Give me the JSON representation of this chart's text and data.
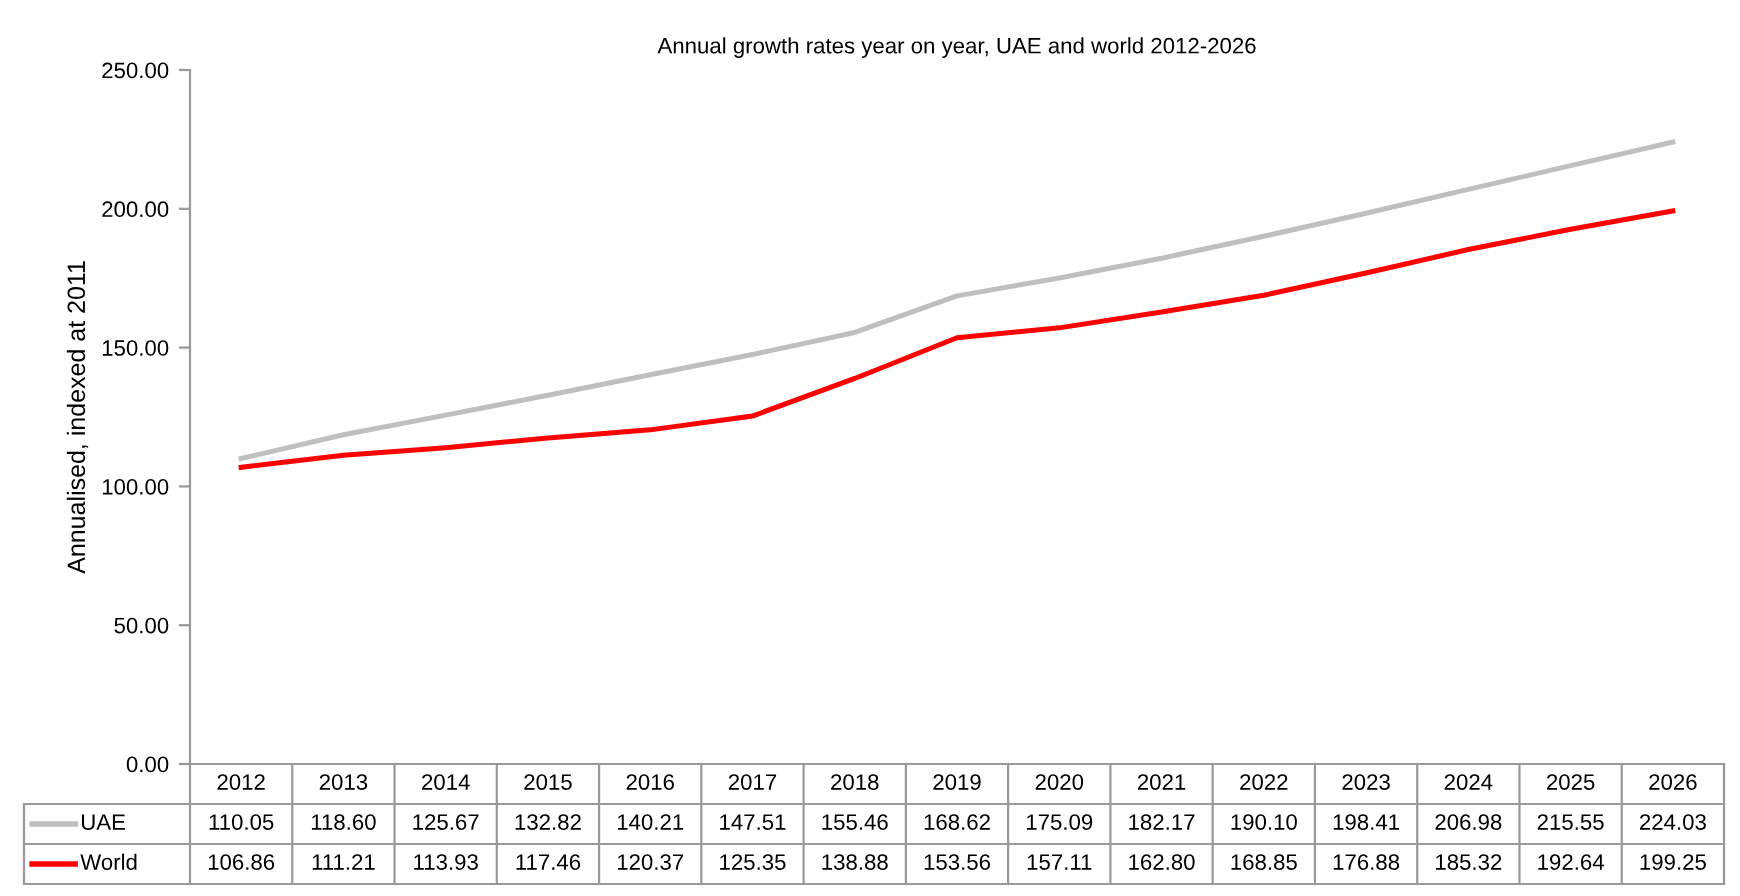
{
  "chart_data": {
    "type": "line",
    "title": "Annual growth rates year on year, UAE and world 2012-2026",
    "ylabel": "Annualised, indexed at 2011",
    "categories": [
      "2012",
      "2013",
      "2014",
      "2015",
      "2016",
      "2017",
      "2018",
      "2019",
      "2020",
      "2021",
      "2022",
      "2023",
      "2024",
      "2025",
      "2026"
    ],
    "series": [
      {
        "name": "UAE",
        "color": "#bfbfbf",
        "values": [
          110.05,
          118.6,
          125.67,
          132.82,
          140.21,
          147.51,
          155.46,
          168.62,
          175.09,
          182.17,
          190.1,
          198.41,
          206.98,
          215.55,
          224.03
        ],
        "value_labels": [
          "110.05",
          "118.60",
          "125.67",
          "132.82",
          "140.21",
          "147.51",
          "155.46",
          "168.62",
          "175.09",
          "182.17",
          "190.10",
          "198.41",
          "206.98",
          "215.55",
          "224.03"
        ]
      },
      {
        "name": "World",
        "color": "#ff0000",
        "values": [
          106.86,
          111.21,
          113.93,
          117.46,
          120.37,
          125.35,
          138.88,
          153.56,
          157.11,
          162.8,
          168.85,
          176.88,
          185.32,
          192.64,
          199.25
        ],
        "value_labels": [
          "106.86",
          "111.21",
          "113.93",
          "117.46",
          "120.37",
          "125.35",
          "138.88",
          "153.56",
          "157.11",
          "162.80",
          "168.85",
          "176.88",
          "185.32",
          "192.64",
          "199.25"
        ]
      }
    ],
    "ylim": [
      0,
      250
    ],
    "yticks": [
      {
        "value": 0,
        "label": "0.00"
      },
      {
        "value": 50,
        "label": "50.00"
      },
      {
        "value": 100,
        "label": "100.00"
      },
      {
        "value": 150,
        "label": "150.00"
      },
      {
        "value": 200,
        "label": "200.00"
      },
      {
        "value": 250,
        "label": "250.00"
      }
    ],
    "grid": false,
    "legend": "bottom left",
    "marker": "none",
    "line_style": "solid"
  }
}
